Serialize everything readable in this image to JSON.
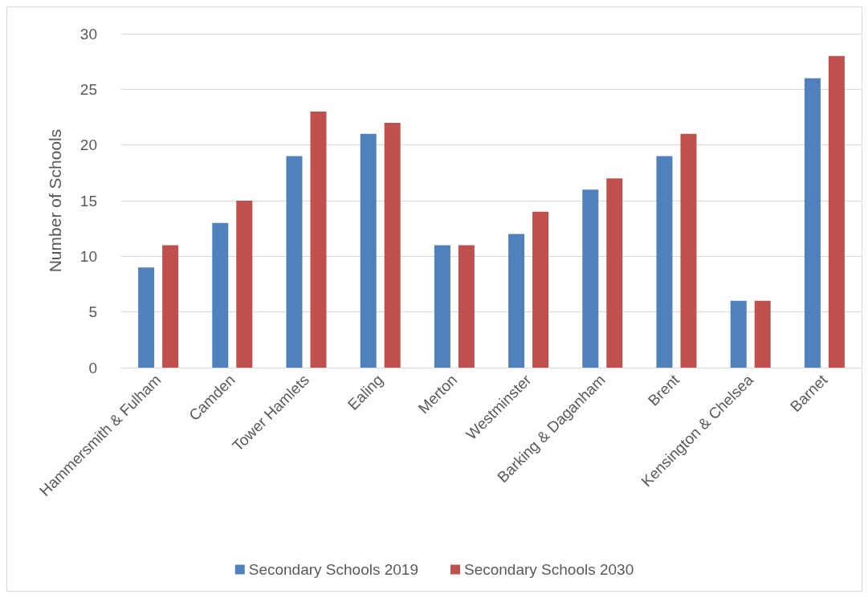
{
  "chart_data": {
    "type": "bar",
    "ylabel": "Number of Schools",
    "categories": [
      "Hammersmith & Fulham",
      "Camden",
      "Tower Hamlets",
      "Ealing",
      "Merton",
      "Westminster",
      "Barking & Daganham",
      "Brent",
      "Kensington & Chelsea",
      "Barnet"
    ],
    "series": [
      {
        "name": "Secondary Schools 2019",
        "color": "#4f81bd",
        "values": [
          9,
          13,
          19,
          21,
          11,
          12,
          16,
          19,
          6,
          26
        ]
      },
      {
        "name": "Secondary Schools 2030",
        "color": "#c0504d",
        "values": [
          11,
          15,
          23,
          22,
          11,
          14,
          17,
          21,
          6,
          28
        ]
      }
    ],
    "ylim": [
      0,
      30
    ],
    "yticks": [
      0,
      5,
      10,
      15,
      20,
      25,
      30
    ],
    "grid": "y",
    "legend": "bottom"
  }
}
